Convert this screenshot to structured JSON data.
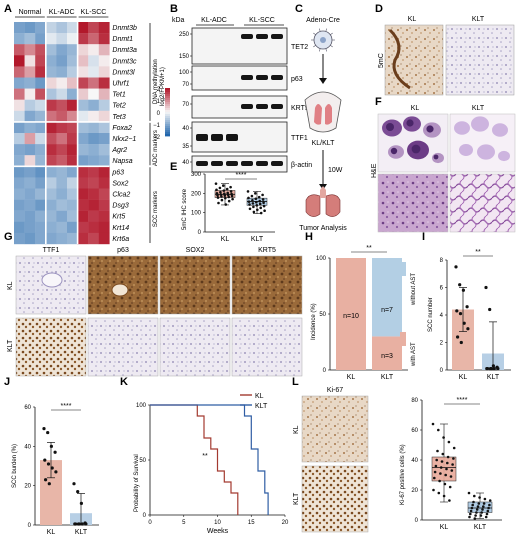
{
  "panels": {
    "A": {
      "label": "A",
      "groups": [
        "Normal",
        "KL-ADC",
        "KL-SCC"
      ],
      "genes": [
        "Dnmt3b",
        "Dnmt1",
        "Dnmt3a",
        "Dnmt3c",
        "Dnmt3l",
        "Uhrf1",
        "Tet1",
        "Tet2",
        "Tet3",
        "Foxa2",
        "Nkx2−1",
        "Agr2",
        "Napsa",
        "p63",
        "Sox2",
        "Clca2",
        "Dsg3",
        "Krt5",
        "Krt14",
        "Krt6a"
      ],
      "cbar_title": "DNA methylation",
      "cbar_sub": "log2(FPKM+1)",
      "cbar_ticks": [
        "2",
        "1",
        "0",
        "−1",
        "−2"
      ],
      "adc_label": "ADC markers",
      "scc_label": "SCC markers",
      "colors": {
        "high": "#b2182b",
        "mid": "#f7f7f7",
        "low": "#2166ac"
      }
    },
    "B": {
      "label": "B",
      "kda": "kDa",
      "groups": [
        "KL-ADC",
        "KL-SCC"
      ],
      "bands": [
        {
          "name": "TET2",
          "markers": [
            "250",
            "150"
          ]
        },
        {
          "name": "p63",
          "markers": [
            "100",
            "70"
          ]
        },
        {
          "name": "KRT5",
          "markers": [
            "70"
          ]
        },
        {
          "name": "TTF1",
          "markers": [
            "40",
            "35"
          ]
        },
        {
          "name": "β-actin",
          "markers": [
            "40"
          ]
        }
      ]
    },
    "C": {
      "label": "C",
      "virus": "Adeno-Cre",
      "mice": "KL/KLT",
      "time": "10W",
      "end": "Tumor Analysis"
    },
    "D": {
      "label": "D",
      "col_kl": "KL",
      "col_klt": "KLT",
      "row": "5mC"
    },
    "E": {
      "label": "E",
      "ylabel": "5mC IHC score",
      "sig": "****",
      "categories": [
        "KL",
        "KLT"
      ],
      "yticks": [
        "0",
        "100",
        "200",
        "300"
      ]
    },
    "F": {
      "label": "F",
      "col_kl": "KL",
      "col_klt": "KLT",
      "row": "H&E"
    },
    "G": {
      "label": "G",
      "markers": [
        "TTF1",
        "p63",
        "SOX2",
        "KRT5"
      ],
      "rows": [
        "KL",
        "KLT"
      ]
    },
    "H": {
      "label": "H",
      "ylabel": "Incidence (%)",
      "sig": "**",
      "yticks": [
        "0",
        "50",
        "100"
      ],
      "legend_without": "without AST",
      "legend_with": "with AST",
      "kl_n": "n=10",
      "klt_n7": "n=7",
      "klt_n3": "n=3"
    },
    "I": {
      "label": "I",
      "ylabel": "SCC number",
      "sig": "**",
      "yticks": [
        "0",
        "2",
        "4",
        "6",
        "8"
      ]
    },
    "J": {
      "label": "J",
      "ylabel": "SCC burden (%)",
      "sig": "****",
      "yticks": [
        "0",
        "20",
        "40",
        "60"
      ]
    },
    "K": {
      "label": "K",
      "ylabel": "Probability of Survival",
      "xlabel": "Weeks",
      "sig": "**",
      "yticks": [
        "0",
        "50",
        "100"
      ],
      "xticks": [
        "0",
        "5",
        "10",
        "15",
        "20"
      ],
      "legend": [
        "KL",
        "KLT"
      ]
    },
    "L": {
      "label": "L",
      "title": "Ki-67",
      "rows": [
        "KL",
        "KLT"
      ],
      "ylabel": "Ki-67 positive cells (%)",
      "sig": "****",
      "yticks": [
        "0",
        "20",
        "40",
        "60",
        "80"
      ]
    }
  },
  "chart_data": [
    {
      "type": "heatmap",
      "rows": [
        "Dnmt3b",
        "Dnmt1",
        "Dnmt3a",
        "Dnmt3c",
        "Dnmt3l",
        "Uhrf1",
        "Tet1",
        "Tet2",
        "Tet3",
        "Foxa2",
        "Nkx2−1",
        "Agr2",
        "Napsa",
        "p63",
        "Sox2",
        "Clca2",
        "Dsg3",
        "Krt5",
        "Krt14",
        "Krt6a"
      ],
      "columns": [
        "Normal",
        "Normal",
        "Normal",
        "KL-ADC",
        "KL-ADC",
        "KL-ADC",
        "KL-SCC",
        "KL-SCC",
        "KL-SCC"
      ],
      "range": [
        -2,
        2
      ],
      "values": [
        [
          -1.2,
          -1.3,
          -1.1,
          -0.5,
          -0.7,
          -0.4,
          2.0,
          1.6,
          1.9
        ],
        [
          -1.0,
          -0.8,
          -1.2,
          -0.2,
          -0.4,
          -0.1,
          1.7,
          1.3,
          1.8
        ],
        [
          1.4,
          1.0,
          1.5,
          -0.8,
          -1.1,
          -0.9,
          0.3,
          0.1,
          0.6
        ],
        [
          2.0,
          0.2,
          1.6,
          -1.0,
          -1.2,
          -0.8,
          0.5,
          -0.3,
          0.1
        ],
        [
          1.3,
          0.8,
          1.8,
          -0.9,
          -1.0,
          -0.6,
          0.2,
          -0.2,
          0.3
        ],
        [
          -1.1,
          -1.0,
          -1.3,
          0.3,
          0.1,
          0.5,
          1.6,
          1.2,
          1.8
        ],
        [
          1.2,
          0.1,
          1.5,
          -0.7,
          -0.4,
          -1.0,
          0.4,
          0.0,
          0.6
        ],
        [
          0.2,
          -0.6,
          -0.4,
          1.7,
          1.5,
          1.9,
          -0.8,
          -1.0,
          -0.6
        ],
        [
          -0.4,
          -1.1,
          -0.9,
          1.2,
          1.4,
          1.0,
          -0.2,
          0.1,
          0.3
        ],
        [
          -1.2,
          -1.0,
          -1.1,
          1.9,
          1.7,
          1.6,
          -0.8,
          -0.9,
          -0.7
        ],
        [
          -0.6,
          0.8,
          -0.4,
          1.5,
          1.2,
          1.7,
          -1.1,
          -1.3,
          -1.2
        ],
        [
          -1.1,
          -1.2,
          -1.0,
          1.8,
          1.6,
          1.9,
          -0.9,
          -1.0,
          -0.8
        ],
        [
          -1.0,
          0.3,
          -0.9,
          1.6,
          1.4,
          1.8,
          -1.2,
          -1.1,
          -1.0
        ],
        [
          -1.3,
          -1.2,
          -1.4,
          -1.0,
          -0.9,
          -1.1,
          1.8,
          1.7,
          1.9
        ],
        [
          -1.1,
          -1.0,
          -1.2,
          -0.6,
          -0.9,
          -0.5,
          1.7,
          1.6,
          1.8
        ],
        [
          -1.0,
          -1.1,
          -0.9,
          -0.8,
          -1.0,
          -0.7,
          1.9,
          1.8,
          1.6
        ],
        [
          -1.2,
          -1.1,
          -1.3,
          -1.0,
          -0.8,
          -0.9,
          1.8,
          1.9,
          1.7
        ],
        [
          -1.1,
          -1.2,
          -1.0,
          -0.9,
          -1.1,
          -0.8,
          1.9,
          1.7,
          1.8
        ],
        [
          -1.3,
          -1.2,
          -1.1,
          -1.0,
          -0.9,
          -1.2,
          1.7,
          1.8,
          1.9
        ],
        [
          -1.2,
          -1.3,
          -1.1,
          -1.1,
          -1.0,
          -0.9,
          1.8,
          1.6,
          1.9
        ]
      ]
    },
    {
      "type": "box",
      "ylim": [
        0,
        300
      ],
      "series": [
        {
          "name": "KL",
          "median": 195,
          "q1": 178,
          "q3": 215,
          "min": 140,
          "max": 250,
          "points": [
            250,
            240,
            232,
            228,
            222,
            218,
            214,
            210,
            206,
            202,
            200,
            198,
            196,
            194,
            192,
            190,
            188,
            186,
            184,
            181,
            178,
            175,
            170,
            165,
            160,
            150,
            142
          ]
        },
        {
          "name": "KLT",
          "median": 158,
          "q1": 138,
          "q3": 175,
          "min": 95,
          "max": 210,
          "points": [
            210,
            200,
            192,
            186,
            180,
            176,
            172,
            168,
            164,
            160,
            157,
            154,
            151,
            148,
            145,
            142,
            138,
            134,
            130,
            125,
            120,
            115,
            110,
            104,
            98
          ]
        }
      ]
    },
    {
      "type": "bar",
      "stacked": true,
      "categories": [
        "KL",
        "KLT"
      ],
      "ylim": [
        0,
        100
      ],
      "series": [
        {
          "name": "with AST",
          "values": [
            100,
            30
          ]
        },
        {
          "name": "without AST",
          "values": [
            0,
            70
          ]
        }
      ]
    },
    {
      "type": "bar",
      "categories": [
        "KL",
        "KLT"
      ],
      "ylim": [
        0,
        8
      ],
      "values": [
        4.4,
        1.2
      ],
      "sd": [
        1.6,
        2.3
      ],
      "points": [
        [
          7.5,
          6.2,
          5.8,
          4.6,
          4.3,
          4.1,
          3.4,
          3.0,
          2.4,
          2.0
        ],
        [
          6.0,
          4.4,
          0.3,
          0.2,
          0.1,
          0.1,
          0.1,
          0.1,
          0.1,
          0.1
        ]
      ]
    },
    {
      "type": "bar",
      "categories": [
        "KL",
        "KLT"
      ],
      "ylim": [
        0,
        60
      ],
      "values": [
        33,
        6
      ],
      "sd": [
        9,
        10
      ],
      "points": [
        [
          49,
          47,
          40,
          37,
          33,
          31,
          29,
          27,
          23,
          21
        ],
        [
          21,
          17,
          11,
          1,
          0.5,
          0.5,
          0.5,
          0.5,
          0.5,
          0.5
        ]
      ]
    },
    {
      "type": "line",
      "xlim": [
        0,
        20
      ],
      "ylim": [
        0,
        100
      ],
      "series": [
        {
          "name": "KL",
          "steps": [
            [
              0,
              100
            ],
            [
              7,
              100
            ],
            [
              7,
              90
            ],
            [
              8,
              90
            ],
            [
              8,
              70
            ],
            [
              9,
              70
            ],
            [
              9,
              60
            ],
            [
              10,
              60
            ],
            [
              10,
              40
            ],
            [
              11,
              40
            ],
            [
              11,
              30
            ],
            [
              12,
              30
            ],
            [
              12,
              20
            ],
            [
              13,
              20
            ],
            [
              13,
              0
            ]
          ]
        },
        {
          "name": "KLT",
          "steps": [
            [
              0,
              100
            ],
            [
              14,
              100
            ],
            [
              14,
              90
            ],
            [
              15,
              90
            ],
            [
              15,
              60
            ],
            [
              16,
              60
            ],
            [
              16,
              40
            ],
            [
              17,
              40
            ],
            [
              17,
              20
            ],
            [
              17.5,
              20
            ],
            [
              17.5,
              0
            ]
          ]
        }
      ]
    },
    {
      "type": "box",
      "ylim": [
        0,
        80
      ],
      "series": [
        {
          "name": "KL",
          "median": 35,
          "q1": 26,
          "q3": 42,
          "min": 12,
          "max": 64,
          "points": [
            64,
            60,
            55,
            52,
            48,
            46,
            44,
            42,
            41,
            40,
            39,
            38,
            37,
            36,
            35,
            34,
            33,
            32,
            31,
            30,
            29,
            28,
            26,
            24,
            22,
            20,
            18,
            16,
            13
          ]
        },
        {
          "name": "KLT",
          "median": 8,
          "q1": 5,
          "q3": 12,
          "min": 1,
          "max": 18,
          "points": [
            18,
            16,
            15,
            14,
            13,
            12,
            11,
            11,
            10,
            10,
            9,
            9,
            8,
            8,
            7,
            7,
            6,
            6,
            5,
            5,
            4,
            4,
            3,
            3,
            2,
            2,
            1
          ]
        }
      ]
    }
  ]
}
